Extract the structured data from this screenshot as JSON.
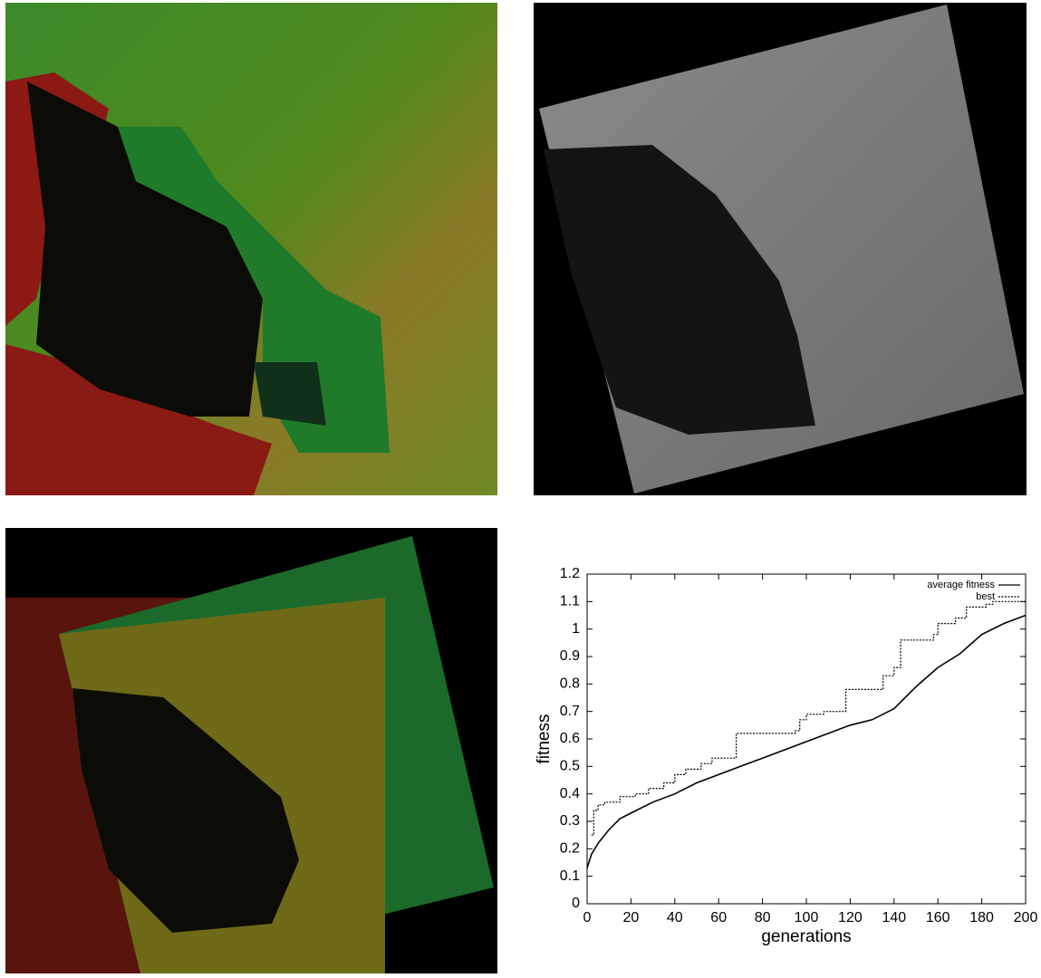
{
  "chart_data": {
    "type": "line",
    "xlabel": "generations",
    "ylabel": "fitness",
    "xlim": [
      0,
      200
    ],
    "ylim": [
      0,
      1.2
    ],
    "xticks": [
      0,
      20,
      40,
      60,
      80,
      100,
      120,
      140,
      160,
      180,
      200
    ],
    "yticks": [
      0,
      0.1,
      0.2,
      0.3,
      0.4,
      0.5,
      0.6,
      0.7,
      0.8,
      0.9,
      1,
      1.1,
      1.2
    ],
    "legend": "upper right",
    "series": [
      {
        "name": "average fitness",
        "color": "#000000",
        "dash": "solid",
        "x": [
          0,
          2,
          5,
          10,
          15,
          20,
          30,
          40,
          50,
          60,
          70,
          80,
          90,
          100,
          110,
          120,
          130,
          140,
          150,
          160,
          170,
          180,
          190,
          200
        ],
        "values": [
          0.13,
          0.18,
          0.22,
          0.27,
          0.31,
          0.33,
          0.37,
          0.4,
          0.44,
          0.47,
          0.5,
          0.53,
          0.56,
          0.59,
          0.62,
          0.65,
          0.67,
          0.71,
          0.79,
          0.86,
          0.91,
          0.98,
          1.02,
          1.05
        ]
      },
      {
        "name": "best",
        "color": "#000000",
        "dash": "dotted",
        "x": [
          2,
          3,
          3,
          5,
          5,
          8,
          8,
          15,
          15,
          22,
          22,
          28,
          28,
          35,
          35,
          40,
          40,
          45,
          45,
          52,
          52,
          57,
          57,
          68,
          68,
          95,
          95,
          97,
          97,
          100,
          100,
          108,
          108,
          118,
          118,
          135,
          135,
          140,
          140,
          143,
          143,
          158,
          158,
          160,
          160,
          168,
          168,
          173,
          173,
          182,
          182,
          185,
          185,
          200
        ],
        "values": [
          0.25,
          0.25,
          0.34,
          0.34,
          0.36,
          0.36,
          0.37,
          0.37,
          0.39,
          0.39,
          0.4,
          0.4,
          0.42,
          0.42,
          0.44,
          0.44,
          0.47,
          0.47,
          0.49,
          0.49,
          0.51,
          0.51,
          0.53,
          0.53,
          0.62,
          0.62,
          0.63,
          0.63,
          0.67,
          0.67,
          0.69,
          0.69,
          0.7,
          0.7,
          0.78,
          0.78,
          0.83,
          0.83,
          0.86,
          0.86,
          0.96,
          0.96,
          0.98,
          0.98,
          1.02,
          1.02,
          1.04,
          1.04,
          1.08,
          1.08,
          1.09,
          1.09,
          1.1,
          1.1
        ]
      }
    ]
  }
}
